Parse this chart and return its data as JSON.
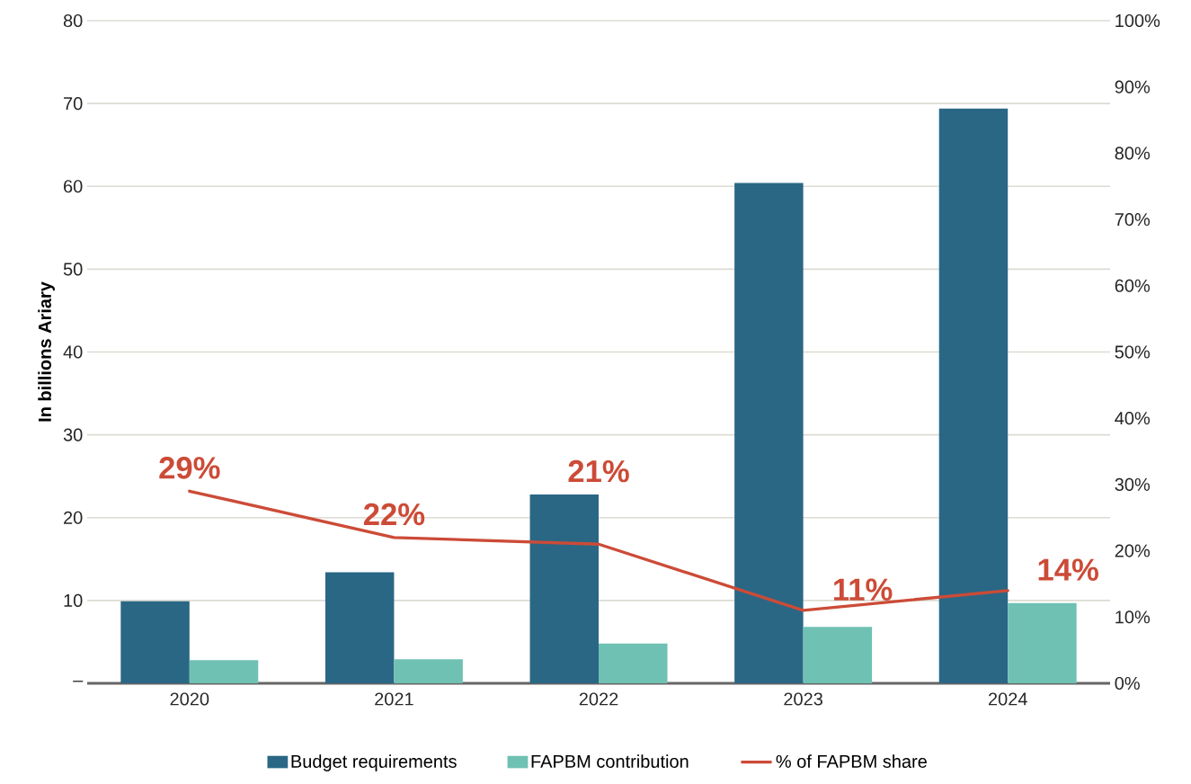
{
  "chart_data": {
    "type": "bar",
    "ylabel": "In billions Ariary",
    "categories": [
      "2020",
      "2021",
      "2022",
      "2023",
      "2024"
    ],
    "series": [
      {
        "name": "Budget requirements",
        "color": "#2a6785",
        "values": [
          9.9,
          13.4,
          22.8,
          60.4,
          69.4
        ]
      },
      {
        "name": "FAPBM contribution",
        "color": "#6fc1b3",
        "values": [
          2.8,
          2.9,
          4.8,
          6.8,
          9.7
        ]
      },
      {
        "name": "% of FAPBM share",
        "type": "line",
        "axis": "y2",
        "color": "#cc4b37",
        "values": [
          29,
          22,
          21,
          11,
          14
        ],
        "value_labels": [
          "29%",
          "22%",
          "21%",
          "11%",
          "14%"
        ]
      }
    ],
    "ylim": [
      0,
      80
    ],
    "yticks": [
      {
        "value": 0,
        "label": "–"
      },
      10,
      20,
      30,
      40,
      50,
      60,
      70,
      80
    ],
    "y2lim": [
      0,
      100
    ],
    "y2ticks": [
      {
        "value": 0,
        "label": "0%"
      },
      {
        "value": 10,
        "label": "10%"
      },
      {
        "value": 20,
        "label": "20%"
      },
      {
        "value": 30,
        "label": "30%"
      },
      {
        "value": 40,
        "label": "40%"
      },
      {
        "value": 50,
        "label": "50%"
      },
      {
        "value": 60,
        "label": "60%"
      },
      {
        "value": 70,
        "label": "70%"
      },
      {
        "value": 80,
        "label": "80%"
      },
      {
        "value": 90,
        "label": "90%"
      },
      {
        "value": 100,
        "label": "100%"
      }
    ],
    "grid": "y",
    "legend": "bottom",
    "line_style": "solid"
  }
}
